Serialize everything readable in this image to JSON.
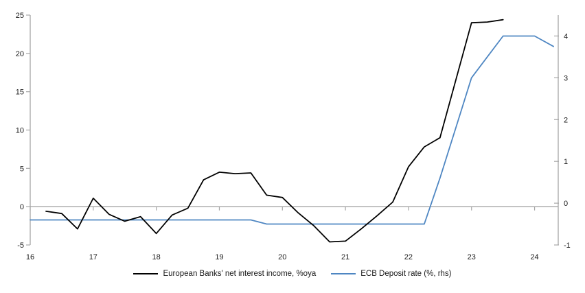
{
  "chart_data": {
    "type": "line",
    "title": "",
    "xlabel": "",
    "ylabel_left": "",
    "ylabel_right": "",
    "grid": "single horizontal zero line",
    "legend_position": "bottom-center",
    "x_axis": {
      "range": [
        16,
        24.375
      ],
      "ticks": [
        16,
        17,
        18,
        19,
        20,
        21,
        22,
        23,
        24
      ]
    },
    "y_left": {
      "range": [
        -5,
        25
      ],
      "ticks": [
        -5,
        0,
        5,
        10,
        15,
        20,
        25
      ]
    },
    "y_right": {
      "range": [
        -1,
        4.5
      ],
      "ticks": [
        -1,
        0,
        1,
        2,
        3,
        4
      ]
    },
    "zero_line_on_left_axis": 0,
    "colors": {
      "series_black": "#000000",
      "series_blue": "#4e86c2",
      "axis": "#a6a6a6",
      "text": "#1a1a1a"
    },
    "series": [
      {
        "name": "European Banks' net interest income, %oya",
        "axis": "left",
        "color": "#000000",
        "points": [
          [
            16.25,
            -0.6
          ],
          [
            16.5,
            -0.9
          ],
          [
            16.75,
            -2.9
          ],
          [
            17.0,
            1.1
          ],
          [
            17.25,
            -1.0
          ],
          [
            17.5,
            -1.9
          ],
          [
            17.75,
            -1.3
          ],
          [
            18.0,
            -3.5
          ],
          [
            18.25,
            -1.1
          ],
          [
            18.5,
            -0.2
          ],
          [
            18.75,
            3.5
          ],
          [
            19.0,
            4.5
          ],
          [
            19.25,
            4.3
          ],
          [
            19.5,
            4.4
          ],
          [
            19.75,
            1.5
          ],
          [
            20.0,
            1.2
          ],
          [
            20.25,
            -0.8
          ],
          [
            20.5,
            -2.5
          ],
          [
            20.75,
            -4.6
          ],
          [
            21.0,
            -4.5
          ],
          [
            21.25,
            -2.9
          ],
          [
            21.5,
            -1.2
          ],
          [
            21.75,
            0.6
          ],
          [
            22.0,
            5.2
          ],
          [
            22.25,
            7.8
          ],
          [
            22.5,
            9.0
          ],
          [
            22.75,
            16.5
          ],
          [
            23.0,
            24.0
          ],
          [
            23.25,
            24.1
          ],
          [
            23.5,
            24.4
          ]
        ]
      },
      {
        "name": "ECB Deposit rate (%, rhs)",
        "axis": "right",
        "color": "#4e86c2",
        "points": [
          [
            16.0,
            -0.4
          ],
          [
            19.5,
            -0.4
          ],
          [
            19.75,
            -0.5
          ],
          [
            22.25,
            -0.5
          ],
          [
            22.5,
            0.6
          ],
          [
            22.75,
            1.8
          ],
          [
            23.0,
            3.0
          ],
          [
            23.25,
            3.5
          ],
          [
            23.5,
            4.0
          ],
          [
            24.0,
            4.0
          ],
          [
            24.3,
            3.75
          ]
        ]
      }
    ]
  }
}
